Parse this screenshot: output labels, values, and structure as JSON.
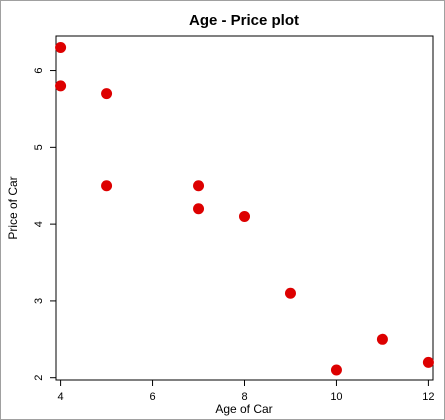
{
  "chart_data": {
    "type": "scatter",
    "title": "Age - Price plot",
    "xlabel": "Age of Car",
    "ylabel": "Price of Car",
    "xlim": [
      3.9,
      12.1
    ],
    "ylim": [
      1.97,
      6.45
    ],
    "x_ticks": [
      4,
      6,
      8,
      10,
      12
    ],
    "y_ticks": [
      2,
      3,
      4,
      5,
      6
    ],
    "grid": false,
    "point_color": "#dd0000",
    "series": [
      {
        "x": [
          4,
          4,
          5,
          5,
          7,
          7,
          8,
          9,
          10,
          11,
          12
        ],
        "y": [
          6.3,
          5.8,
          5.7,
          4.5,
          4.5,
          4.2,
          4.1,
          3.1,
          2.1,
          2.5,
          2.2
        ]
      }
    ]
  }
}
